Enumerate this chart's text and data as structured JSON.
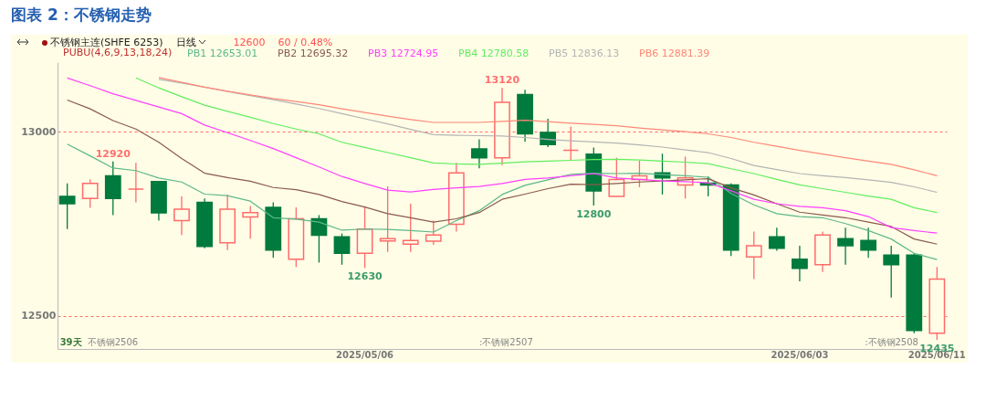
{
  "chart_data": {
    "type": "candlestick",
    "title": "图表 2：不锈钢走势",
    "subtitle": "不锈钢主连(SHFE 6253)",
    "legend_title": "PUBU(4,6,9,13,18,24)",
    "annotations": [
      "日线",
      "12600",
      "60 / 0.48%",
      "39天",
      "不锈钢2506",
      ":不锈钢2507",
      ":不锈钢2508",
      {
        "text": "12920",
        "y": 12920
      },
      {
        "text": "13120",
        "y": 13120
      },
      {
        "text": "12630",
        "y": 12630
      },
      {
        "text": "12800",
        "y": 12800
      },
      {
        "text": "12435",
        "y": 12435
      }
    ],
    "categories": [
      null,
      null,
      null,
      null,
      null,
      null,
      null,
      null,
      null,
      null,
      null,
      null,
      null,
      "2025/05/06",
      null,
      null,
      null,
      null,
      null,
      null,
      null,
      null,
      null,
      null,
      null,
      null,
      null,
      null,
      null,
      null,
      null,
      null,
      "2025/06/03",
      null,
      null,
      null,
      null,
      null,
      "2025/06/11"
    ],
    "ohlc": [
      [
        12825,
        12860,
        12736,
        12805
      ],
      [
        12819,
        12871,
        12794,
        12860
      ],
      [
        12881,
        12920,
        12774,
        12819
      ],
      [
        12845,
        12916,
        12809,
        12845
      ],
      [
        12865,
        12865,
        12759,
        12780
      ],
      [
        12759,
        12825,
        12720,
        12790
      ],
      [
        12809,
        12819,
        12684,
        12689
      ],
      [
        12699,
        12829,
        12679,
        12790
      ],
      [
        12769,
        12799,
        12710,
        12781
      ],
      [
        12795,
        12809,
        12658,
        12679
      ],
      [
        12654,
        12795,
        12633,
        12764
      ],
      [
        12764,
        12774,
        12645,
        12719
      ],
      [
        12715,
        12724,
        12639,
        12670
      ],
      [
        12670,
        12798,
        12630,
        12736
      ],
      [
        12704,
        12852,
        12674,
        12710
      ],
      [
        12695,
        12805,
        12674,
        12705
      ],
      [
        12703,
        12759,
        12693,
        12720
      ],
      [
        12749,
        12916,
        12729,
        12889
      ],
      [
        12954,
        12980,
        12901,
        12930
      ],
      [
        12930,
        13120,
        12910,
        13081
      ],
      [
        13102,
        13115,
        12974,
        12995
      ],
      [
        12999,
        13036,
        12959,
        12966
      ],
      [
        12950,
        13015,
        12922,
        12950
      ],
      [
        12940,
        12958,
        12800,
        12840
      ],
      [
        12825,
        12930,
        12825,
        12871
      ],
      [
        12871,
        12922,
        12850,
        12881
      ],
      [
        12889,
        12941,
        12830,
        12875
      ],
      [
        12856,
        12933,
        12819,
        12875
      ],
      [
        12861,
        12879,
        12825,
        12856
      ],
      [
        12856,
        12860,
        12663,
        12679
      ],
      [
        12660,
        12729,
        12600,
        12691
      ],
      [
        12715,
        12740,
        12677,
        12684
      ],
      [
        12654,
        12691,
        12594,
        12629
      ],
      [
        12639,
        12729,
        12619,
        12720
      ],
      [
        12710,
        12740,
        12639,
        12691
      ],
      [
        12705,
        12740,
        12658,
        12679
      ],
      [
        12665,
        12691,
        12550,
        12639
      ],
      [
        12665,
        12670,
        12453,
        12460
      ],
      [
        12453,
        12633,
        12435,
        12600
      ]
    ],
    "series": [
      {
        "name": "PB1 12653.01",
        "type": "line",
        "color": "#5cb88a",
        "values": [
          12967,
          12935,
          12902,
          12895,
          12875,
          12864,
          12831,
          12827,
          12812,
          12767,
          12763,
          12755,
          12733,
          12736,
          12735,
          12732,
          12728,
          12759,
          12786,
          12830,
          12855,
          12870,
          12885,
          12888,
          12887,
          12888,
          12884,
          12881,
          12877,
          12833,
          12802,
          12778,
          12770,
          12767,
          12751,
          12732,
          12709,
          12670,
          12653
        ]
      },
      {
        "name": "PB2 12695.32",
        "type": "line",
        "color": "#8b5a4c",
        "values": [
          13087,
          13063,
          13031,
          13008,
          12972,
          12928,
          12888,
          12876,
          12866,
          12849,
          12843,
          12830,
          12811,
          12796,
          12778,
          12767,
          12755,
          12764,
          12781,
          12817,
          12831,
          12846,
          12858,
          12857,
          12860,
          12864,
          12867,
          12870,
          12873,
          12848,
          12829,
          12805,
          12782,
          12774,
          12767,
          12755,
          12743,
          12709,
          12695
        ]
      },
      {
        "name": "PB3 12724.95",
        "type": "line",
        "color": "#ff40ff",
        "values": [
          13147,
          13126,
          13104,
          13086,
          13068,
          13050,
          13019,
          12998,
          12977,
          12955,
          12930,
          12905,
          12879,
          12860,
          12842,
          12837,
          12844,
          12848,
          12852,
          12860,
          12871,
          12875,
          12881,
          12887,
          12875,
          12871,
          12867,
          12865,
          12862,
          12840,
          12817,
          12805,
          12798,
          12794,
          12786,
          12770,
          12740,
          12732,
          12725
        ]
      },
      {
        "name": "PB4 12780.58",
        "type": "line",
        "color": "#60ee60",
        "values": [
          null,
          null,
          null,
          13147,
          13120,
          13096,
          13073,
          13056,
          13040,
          13023,
          13008,
          12995,
          12972,
          12958,
          12944,
          12930,
          12916,
          12913,
          12912,
          12915,
          12919,
          12921,
          12923,
          12925,
          12926,
          12924,
          12921,
          12918,
          12914,
          12900,
          12887,
          12871,
          12856,
          12846,
          12836,
          12826,
          12817,
          12794,
          12781
        ]
      },
      {
        "name": "PB5 12836.13",
        "type": "line",
        "color": "#b4b4b4",
        "values": [
          null,
          null,
          null,
          null,
          13143,
          13133,
          13122,
          13110,
          13099,
          13088,
          13076,
          13064,
          13050,
          13036,
          13022,
          13007,
          12993,
          12991,
          12990,
          12989,
          12985,
          12980,
          12976,
          12973,
          12970,
          12965,
          12959,
          12951,
          12944,
          12928,
          12909,
          12898,
          12887,
          12881,
          12876,
          12870,
          12863,
          12851,
          12836
        ]
      },
      {
        "name": "PB6 12881.39",
        "type": "line",
        "color": "#ff8878",
        "values": [
          null,
          null,
          null,
          null,
          13148,
          13135,
          13122,
          13111,
          13101,
          13091,
          13083,
          13074,
          13063,
          13053,
          13043,
          13034,
          13026,
          13026,
          13026,
          13029,
          13032,
          13028,
          13024,
          13021,
          13017,
          13011,
          13006,
          13001,
          12995,
          12985,
          12972,
          12961,
          12950,
          12940,
          12930,
          12921,
          12912,
          12897,
          12881
        ]
      }
    ],
    "ylim": [
      12410,
      13190
    ],
    "yticks": [
      12500,
      13000
    ],
    "grid": "y",
    "legend": "top left"
  }
}
